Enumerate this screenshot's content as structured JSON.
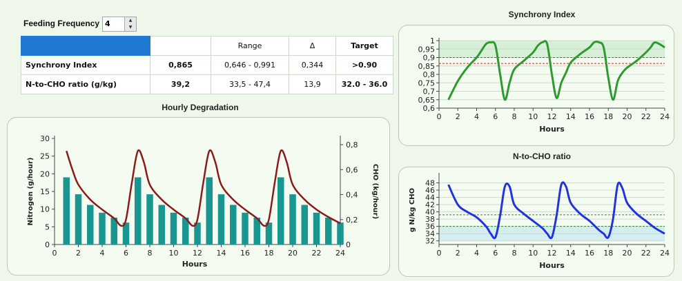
{
  "feeding": {
    "label": "Feeding Frequency",
    "value": "4"
  },
  "table": {
    "headers": [
      "",
      "Range",
      "Δ",
      "Target"
    ],
    "rows": [
      {
        "name": "Synchrony Index",
        "value": "0,865",
        "range": "0,646 - 0,991",
        "delta": "0,344",
        "target": ">0.90"
      },
      {
        "name": "N-to-CHO ratio (g/kg)",
        "value": "39,2",
        "range": "33,5 - 47,4",
        "delta": "13,9",
        "target": "32.0 - 36.0"
      }
    ]
  },
  "colors": {
    "accent": "#1f78d1",
    "bars": "#1a9690",
    "cho_line": "#8b1a1a",
    "sync_line": "#2e9a2e",
    "ratio_line": "#2233dd"
  },
  "chart_data": [
    {
      "type": "bar",
      "title": "Hourly Degradation",
      "xlabel": "Hours",
      "ylabel": "Nitrogen (g/hour)",
      "y2label": "CHO (kg/hour)",
      "xlim": [
        0,
        24
      ],
      "ylim": [
        0,
        30
      ],
      "y2lim": [
        0,
        0.85
      ],
      "xticks": [
        0,
        2,
        4,
        6,
        8,
        10,
        12,
        14,
        16,
        18,
        20,
        22,
        24
      ],
      "yticks": [
        0,
        5,
        10,
        15,
        20,
        25,
        30
      ],
      "y2ticks": [
        0,
        0.2,
        0.4,
        0.6,
        0.8
      ],
      "y2ticklabels": [
        "0",
        "0,2",
        "0,4",
        "0,6",
        "0,8"
      ],
      "series": [
        {
          "name": "Nitrogen",
          "kind": "bar",
          "x": [
            1,
            2,
            3,
            4,
            5,
            6,
            7,
            8,
            9,
            10,
            11,
            12,
            13,
            14,
            15,
            16,
            17,
            18,
            19,
            20,
            21,
            22,
            23,
            24
          ],
          "values": [
            19,
            14.2,
            11.2,
            9,
            7.6,
            6.2,
            19,
            14.2,
            11.2,
            9,
            7.6,
            6.2,
            19,
            14.2,
            11.2,
            9,
            7.6,
            6.2,
            19,
            14.2,
            11.2,
            9,
            7.6,
            6.2
          ]
        },
        {
          "name": "CHO",
          "kind": "line",
          "axis": "right",
          "x": [
            1,
            1.5,
            2,
            3,
            4,
            5,
            5.6,
            6,
            6.5,
            7,
            7.5,
            8,
            9,
            10,
            11,
            11.6,
            12,
            12.5,
            13,
            13.5,
            14,
            15,
            16,
            17,
            17.6,
            18,
            18.5,
            19,
            19.5,
            20,
            21,
            22,
            23,
            24
          ],
          "values": [
            0.75,
            0.6,
            0.48,
            0.36,
            0.28,
            0.21,
            0.15,
            0.2,
            0.5,
            0.75,
            0.66,
            0.48,
            0.36,
            0.28,
            0.21,
            0.15,
            0.2,
            0.5,
            0.75,
            0.66,
            0.48,
            0.36,
            0.28,
            0.21,
            0.15,
            0.2,
            0.5,
            0.75,
            0.66,
            0.48,
            0.36,
            0.28,
            0.22,
            0.17
          ]
        }
      ]
    },
    {
      "type": "line",
      "title": "Synchrony Index",
      "xlabel": "Hours",
      "xlim": [
        0,
        24
      ],
      "ylim": [
        0.6,
        1.0
      ],
      "xticks": [
        0,
        2,
        4,
        6,
        8,
        10,
        12,
        14,
        16,
        18,
        20,
        22,
        24
      ],
      "yticks": [
        0.6,
        0.65,
        0.7,
        0.75,
        0.8,
        0.85,
        0.9,
        0.95,
        1
      ],
      "yticklabels": [
        "0,6",
        "0,65",
        "0,7",
        "0,75",
        "0,8",
        "0,85",
        "0,9",
        "0,95",
        "1"
      ],
      "reference_lines": [
        {
          "y": 0.9,
          "color": "#2e8b2e"
        },
        {
          "y": 0.865,
          "color": "#e02020"
        }
      ],
      "band": [
        0.9,
        1.0
      ],
      "series": [
        {
          "name": "Synchrony",
          "x": [
            1,
            2,
            3,
            4,
            4.5,
            5,
            5.5,
            6,
            6.5,
            7,
            7.5,
            8,
            9,
            10,
            10.5,
            11,
            11.5,
            12,
            12.5,
            13,
            13.5,
            14,
            15,
            16,
            16.5,
            17,
            17.5,
            18,
            18.5,
            19,
            19.5,
            20,
            21,
            22,
            22.5,
            23,
            24
          ],
          "values": [
            0.65,
            0.76,
            0.84,
            0.9,
            0.94,
            0.98,
            0.99,
            0.97,
            0.8,
            0.65,
            0.75,
            0.83,
            0.88,
            0.93,
            0.97,
            0.99,
            0.98,
            0.8,
            0.66,
            0.75,
            0.81,
            0.87,
            0.92,
            0.96,
            0.99,
            0.99,
            0.96,
            0.78,
            0.65,
            0.76,
            0.81,
            0.84,
            0.88,
            0.93,
            0.96,
            0.99,
            0.96
          ]
        }
      ]
    },
    {
      "type": "line",
      "title": "N-to-CHO ratio",
      "xlabel": "Hours",
      "ylabel": "g N/kg CHO",
      "xlim": [
        0,
        24
      ],
      "ylim": [
        31,
        50
      ],
      "xticks": [
        0,
        2,
        4,
        6,
        8,
        10,
        12,
        14,
        16,
        18,
        20,
        22,
        24
      ],
      "yticks": [
        32,
        34,
        36,
        38,
        40,
        42,
        44,
        46,
        48
      ],
      "reference_lines": [
        {
          "y": 36,
          "color": "#2e8b2e"
        },
        {
          "y": 39.2,
          "color": "#2e8b2e"
        }
      ],
      "band": [
        32,
        36
      ],
      "series": [
        {
          "name": "N-to-CHO",
          "x": [
            1,
            2,
            3,
            4,
            5,
            5.5,
            6,
            6.5,
            7,
            7.5,
            8,
            9,
            10,
            11,
            11.5,
            12,
            12.5,
            13,
            13.5,
            14,
            15,
            16,
            17,
            17.5,
            18,
            18.5,
            19,
            19.5,
            20,
            21,
            22,
            23,
            24
          ],
          "values": [
            47.5,
            42,
            40,
            38.5,
            36,
            34,
            33,
            39,
            47,
            47,
            42,
            39.5,
            37.5,
            35.5,
            34,
            33,
            39,
            47.5,
            47,
            42.5,
            39.5,
            37.5,
            35,
            34,
            33,
            38,
            47.5,
            46.5,
            42.5,
            39.5,
            37.5,
            35.5,
            34
          ]
        }
      ]
    }
  ]
}
